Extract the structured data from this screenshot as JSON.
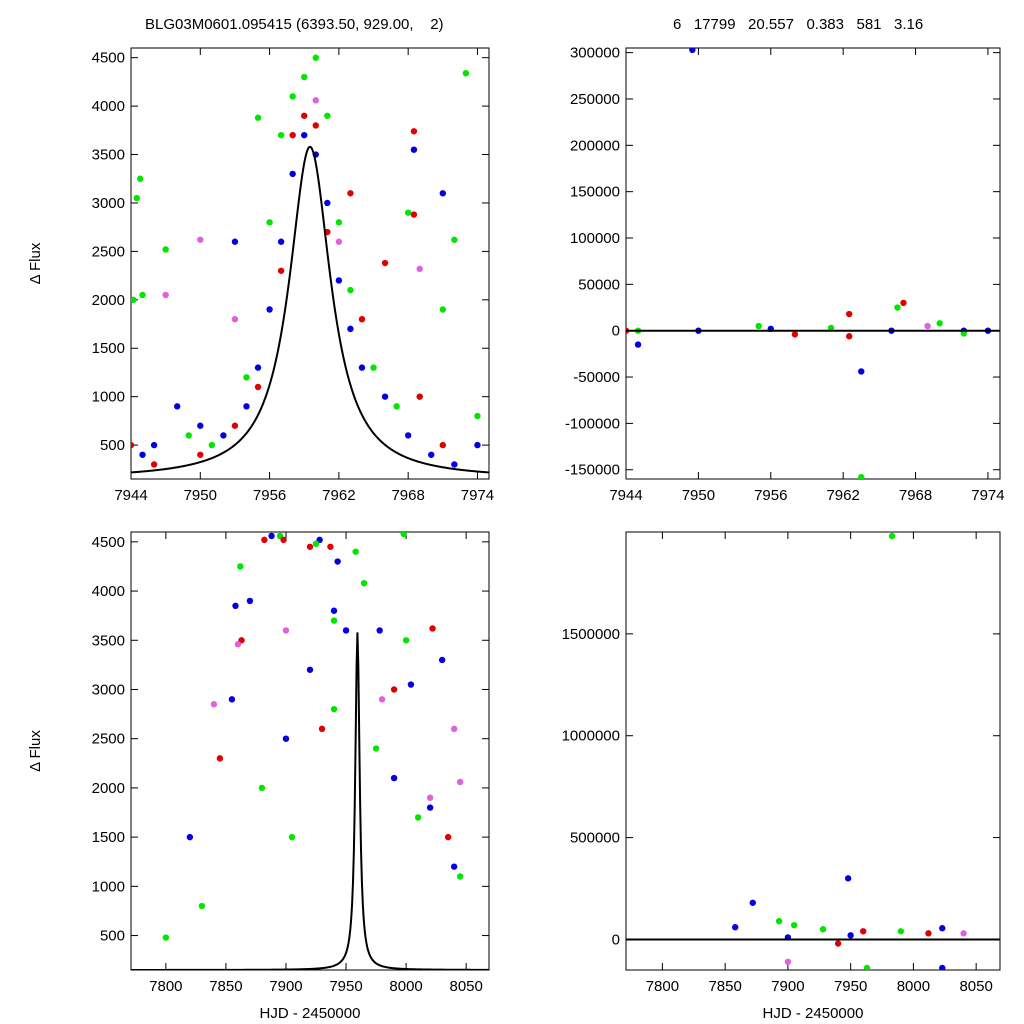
{
  "header": {
    "left": "BLG03M0601.095415 (6393.50, 929.00,    2)",
    "right": "6   17799   20.557   0.383   581   3.16"
  },
  "colors": {
    "red": "#e00000",
    "blue": "#0000e0",
    "green": "#00e600",
    "violet": "#e060e0",
    "model": "#000000"
  },
  "chart_data": [
    {
      "panel": "top-left",
      "type": "scatter",
      "ylabel": "Δ Flux",
      "xlabel": "",
      "xlim": [
        7944,
        7975
      ],
      "ylim": [
        150,
        4600
      ],
      "xticks": [
        7944,
        7950,
        7956,
        7962,
        7968,
        7974
      ],
      "yticks": [
        500,
        1000,
        1500,
        2000,
        2500,
        3000,
        3500,
        4000,
        4500
      ],
      "model": {
        "type": "microlensing peak",
        "t0": 7959.5,
        "peak": 3580,
        "base": 150,
        "tE": 2.2
      },
      "series": [
        {
          "color": "blue",
          "points": [
            [
              7945,
              400
            ],
            [
              7946,
              500
            ],
            [
              7948,
              900
            ],
            [
              7950,
              700
            ],
            [
              7952,
              600
            ],
            [
              7954,
              900
            ],
            [
              7955,
              1300
            ],
            [
              7956,
              1900
            ],
            [
              7957,
              2600
            ],
            [
              7958,
              3300
            ],
            [
              7959,
              3700
            ],
            [
              7960,
              3500
            ],
            [
              7961,
              3000
            ],
            [
              7962,
              2200
            ],
            [
              7963,
              1700
            ],
            [
              7964,
              1300
            ],
            [
              7966,
              1000
            ],
            [
              7968,
              600
            ],
            [
              7970,
              400
            ],
            [
              7972,
              300
            ],
            [
              7974,
              500
            ],
            [
              7953,
              2600
            ],
            [
              7971,
              3100
            ],
            [
              7968.5,
              3550
            ]
          ]
        },
        {
          "color": "green",
          "points": [
            [
              7944.5,
              3050
            ],
            [
              7944.8,
              3250
            ],
            [
              7944.2,
              2000
            ],
            [
              7945,
              2050
            ],
            [
              7947,
              2520
            ],
            [
              7949,
              600
            ],
            [
              7951,
              500
            ],
            [
              7954,
              1200
            ],
            [
              7955,
              3880
            ],
            [
              7956,
              2800
            ],
            [
              7957,
              3700
            ],
            [
              7958,
              4100
            ],
            [
              7959,
              4300
            ],
            [
              7960,
              4500
            ],
            [
              7961,
              3900
            ],
            [
              7962,
              2800
            ],
            [
              7963,
              2100
            ],
            [
              7965,
              1300
            ],
            [
              7967,
              900
            ],
            [
              7968,
              2900
            ],
            [
              7969,
              1000
            ],
            [
              7971,
              1900
            ],
            [
              7972,
              2620
            ],
            [
              7973,
              4340
            ],
            [
              7974,
              800
            ]
          ]
        },
        {
          "color": "red",
          "points": [
            [
              7944,
              500
            ],
            [
              7946,
              300
            ],
            [
              7950,
              400
            ],
            [
              7953,
              700
            ],
            [
              7955,
              1100
            ],
            [
              7957,
              2300
            ],
            [
              7958,
              3700
            ],
            [
              7959,
              3900
            ],
            [
              7960,
              3800
            ],
            [
              7961,
              2700
            ],
            [
              7963,
              3100
            ],
            [
              7964,
              1800
            ],
            [
              7966,
              2380
            ],
            [
              7968.5,
              3740
            ],
            [
              7968.5,
              2880
            ],
            [
              7969,
              1000
            ],
            [
              7971,
              500
            ]
          ]
        },
        {
          "color": "violet",
          "points": [
            [
              7947,
              2050
            ],
            [
              7950,
              2620
            ],
            [
              7953,
              1800
            ],
            [
              7960,
              4060
            ],
            [
              7969,
              2320
            ],
            [
              7962,
              2600
            ]
          ]
        }
      ]
    },
    {
      "panel": "top-right",
      "type": "scatter",
      "ylabel": "",
      "xlabel": "",
      "xlim": [
        7944,
        7975
      ],
      "ylim": [
        -160000,
        305000
      ],
      "xticks": [
        7944,
        7950,
        7956,
        7962,
        7968,
        7974
      ],
      "yticks": [
        -150000,
        -100000,
        -50000,
        0,
        50000,
        100000,
        150000,
        200000,
        250000,
        300000
      ],
      "model": {
        "type": "flat",
        "value": 0
      },
      "series": [
        {
          "color": "blue",
          "points": [
            [
              7949.5,
              303000
            ],
            [
              7945,
              -15000
            ],
            [
              7963.5,
              -44000
            ],
            [
              7950,
              0
            ],
            [
              7956,
              2000
            ],
            [
              7966,
              0
            ],
            [
              7972,
              0
            ],
            [
              7974,
              0
            ]
          ]
        },
        {
          "color": "green",
          "points": [
            [
              7963.5,
              -158000
            ],
            [
              7966.5,
              25000
            ],
            [
              7970,
              8000
            ],
            [
              7945,
              0
            ],
            [
              7955,
              5000
            ],
            [
              7961,
              3000
            ],
            [
              7972,
              -3000
            ]
          ]
        },
        {
          "color": "red",
          "points": [
            [
              7962.5,
              18000
            ],
            [
              7967,
              30000
            ],
            [
              7962.5,
              -6000
            ],
            [
              7958,
              -4000
            ],
            [
              7944,
              0
            ]
          ]
        },
        {
          "color": "violet",
          "points": [
            [
              7969,
              5000
            ]
          ]
        }
      ]
    },
    {
      "panel": "bottom-left",
      "type": "scatter",
      "ylabel": "Δ Flux",
      "xlabel": "HJD - 2450000",
      "xlim": [
        7771,
        8069
      ],
      "ylim": [
        150,
        4600
      ],
      "xticks": [
        7800,
        7850,
        7900,
        7950,
        8000,
        8050
      ],
      "yticks": [
        500,
        1000,
        1500,
        2000,
        2500,
        3000,
        3500,
        4000,
        4500
      ],
      "model": {
        "type": "microlensing peak",
        "t0": 7959.5,
        "peak": 3580,
        "base": 150,
        "tE": 2.2
      },
      "series": [
        {
          "color": "blue",
          "points": [
            [
              7858,
              3850
            ],
            [
              7870,
              3900
            ],
            [
              7888,
              4560
            ],
            [
              7928,
              4520
            ],
            [
              7940,
              3800
            ],
            [
              7943,
              4300
            ],
            [
              7950,
              3600
            ],
            [
              7978,
              3600
            ],
            [
              8004,
              3050
            ],
            [
              8030,
              3300
            ],
            [
              7820,
              1500
            ],
            [
              7855,
              2900
            ],
            [
              7900,
              2500
            ],
            [
              7920,
              3200
            ],
            [
              7990,
              2100
            ],
            [
              8020,
              1800
            ],
            [
              8040,
              1200
            ]
          ]
        },
        {
          "color": "green",
          "points": [
            [
              7895,
              4560
            ],
            [
              7925,
              4480
            ],
            [
              7965,
              4080
            ],
            [
              7998,
              4580
            ],
            [
              7862,
              4250
            ],
            [
              7940,
              3700
            ],
            [
              7958,
              4400
            ],
            [
              8000,
              3500
            ],
            [
              7880,
              2000
            ],
            [
              7905,
              1500
            ],
            [
              7940,
              2800
            ],
            [
              7975,
              2400
            ],
            [
              8010,
              1700
            ],
            [
              7800,
              480
            ],
            [
              7830,
              800
            ],
            [
              8045,
              1100
            ]
          ]
        },
        {
          "color": "red",
          "points": [
            [
              7882,
              4520
            ],
            [
              7898,
              4520
            ],
            [
              7920,
              4450
            ],
            [
              7937,
              4450
            ],
            [
              8022,
              3620
            ],
            [
              7863,
              3500
            ],
            [
              7845,
              2300
            ],
            [
              7930,
              2600
            ],
            [
              7990,
              3000
            ],
            [
              8035,
              1500
            ]
          ]
        },
        {
          "color": "violet",
          "points": [
            [
              7860,
              3460
            ],
            [
              7900,
              3600
            ],
            [
              8040,
              2600
            ],
            [
              8045,
              2060
            ],
            [
              7840,
              2850
            ],
            [
              7980,
              2900
            ],
            [
              8020,
              1900
            ]
          ]
        }
      ]
    },
    {
      "panel": "bottom-right",
      "type": "scatter",
      "ylabel": "",
      "xlabel": "HJD - 2450000",
      "xlim": [
        7771,
        8069
      ],
      "ylim": [
        -150000,
        2000000
      ],
      "xticks": [
        7800,
        7850,
        7900,
        7950,
        8000,
        8050
      ],
      "yticks": [
        0,
        500000,
        1000000,
        1500000
      ],
      "model": {
        "type": "flat",
        "value": 0
      },
      "series": [
        {
          "color": "blue",
          "points": [
            [
              7872,
              180000
            ],
            [
              7948,
              300000
            ],
            [
              8023,
              -140000
            ],
            [
              7858,
              60000
            ],
            [
              7900,
              10000
            ],
            [
              7950,
              20000
            ],
            [
              8023,
              55000
            ]
          ]
        },
        {
          "color": "green",
          "points": [
            [
              7983,
              1980000
            ],
            [
              7963,
              -140000
            ],
            [
              7893,
              90000
            ],
            [
              7905,
              70000
            ],
            [
              7928,
              50000
            ],
            [
              7990,
              40000
            ]
          ]
        },
        {
          "color": "red",
          "points": [
            [
              7960,
              40000
            ],
            [
              8012,
              30000
            ],
            [
              7940,
              -20000
            ]
          ]
        },
        {
          "color": "violet",
          "points": [
            [
              7900,
              -110000
            ],
            [
              8040,
              30000
            ]
          ]
        }
      ]
    }
  ]
}
